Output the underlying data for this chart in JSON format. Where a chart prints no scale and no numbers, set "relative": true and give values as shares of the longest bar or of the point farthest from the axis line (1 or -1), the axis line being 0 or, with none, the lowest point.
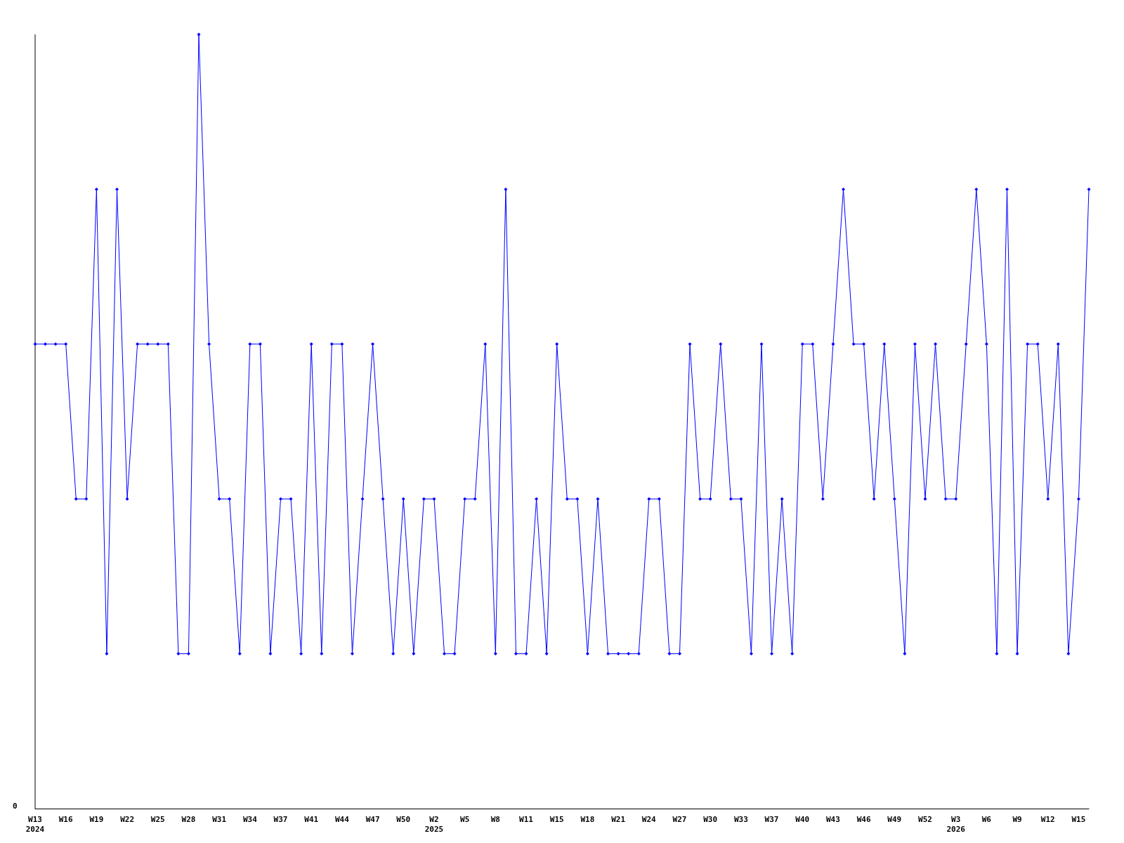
{
  "chart_data": {
    "type": "line",
    "relative": true,
    "color": "#0000ff",
    "marker": "diamond",
    "annotations": [
      "0"
    ],
    "categories": [
      "W13\n2024",
      null,
      null,
      "W16",
      null,
      null,
      "W19",
      null,
      null,
      "W22",
      null,
      null,
      "W25",
      null,
      null,
      "W28",
      null,
      null,
      "W31",
      null,
      null,
      "W34",
      null,
      null,
      "W37",
      null,
      null,
      "W41",
      null,
      null,
      "W44",
      null,
      null,
      "W47",
      null,
      null,
      "W50",
      null,
      null,
      "W2\n2025",
      null,
      null,
      "W5",
      null,
      null,
      "W8",
      null,
      null,
      "W11",
      null,
      null,
      "W15",
      null,
      null,
      "W18",
      null,
      null,
      "W21",
      null,
      null,
      "W24",
      null,
      null,
      "W27",
      null,
      null,
      "W30",
      null,
      null,
      "W33",
      null,
      null,
      "W37",
      null,
      null,
      "W40",
      null,
      null,
      "W43",
      null,
      null,
      "W46",
      null,
      null,
      "W49",
      null,
      null,
      "W52",
      null,
      null,
      "W3\n2026",
      null,
      null,
      "W6",
      null,
      null,
      "W9",
      null,
      null,
      "W12",
      null,
      null,
      "W15",
      null
    ],
    "values": [
      0.6,
      0.6,
      0.6,
      0.6,
      0.4,
      0.4,
      0.8,
      0.2,
      0.8,
      0.4,
      0.6,
      0.6,
      0.6,
      0.6,
      0.2,
      0.2,
      1,
      0.6,
      0.4,
      0.4,
      0.2,
      0.6,
      0.6,
      0.2,
      0.4,
      0.4,
      0.2,
      0.6,
      0.2,
      0.6,
      0.6,
      0.2,
      0.4,
      0.6,
      0.4,
      0.2,
      0.4,
      0.2,
      0.4,
      0.4,
      0.2,
      0.2,
      0.4,
      0.4,
      0.6,
      0.2,
      0.8,
      0.2,
      0.2,
      0.4,
      0.2,
      0.6,
      0.4,
      0.4,
      0.2,
      0.4,
      0.2,
      0.2,
      0.2,
      0.2,
      0.4,
      0.4,
      0.2,
      0.2,
      0.6,
      0.4,
      0.4,
      0.6,
      0.4,
      0.4,
      0.2,
      0.6,
      0.2,
      0.4,
      0.2,
      0.6,
      0.6,
      0.4,
      0.6,
      0.8,
      0.6,
      0.6,
      0.4,
      0.6,
      0.4,
      0.2,
      0.6,
      0.4,
      0.6,
      0.4,
      0.4,
      0.6,
      0.8,
      0.6,
      0.2,
      0.8,
      0.2,
      0.6,
      0.6,
      0.4,
      0.6,
      0.2,
      0.4,
      0.8
    ]
  }
}
